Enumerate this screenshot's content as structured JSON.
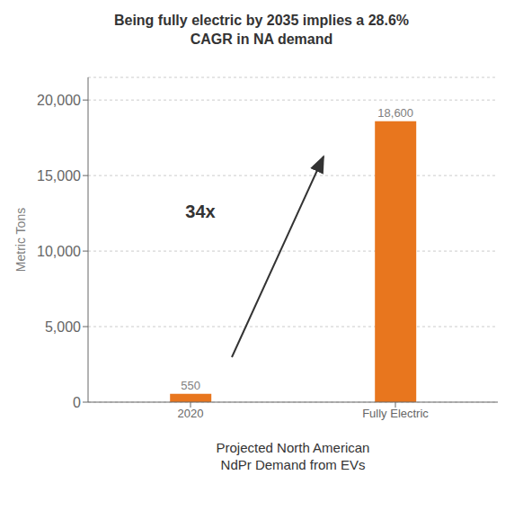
{
  "chart_data": {
    "type": "bar",
    "title": "Being fully electric by 2035 implies a 28.6%\nCAGR in NA demand",
    "xlabel": "Projected North American\nNdPr Demand from EVs",
    "ylabel": "Metric Tons",
    "categories": [
      "2020",
      "Fully Electric"
    ],
    "values": [
      550,
      18600
    ],
    "value_labels": [
      "550",
      "18,600"
    ],
    "data_labels": true,
    "color": "#E8761E",
    "annotations": [
      "34x"
    ],
    "ylim": [
      0,
      21500
    ],
    "yticks": [
      0,
      {
        "value": 5000,
        "label": "5,000"
      },
      {
        "value": 10000,
        "label": "10,000"
      },
      {
        "value": 15000,
        "label": "15,000"
      },
      {
        "value": 20000,
        "label": "20,000"
      }
    ],
    "grid": true
  }
}
